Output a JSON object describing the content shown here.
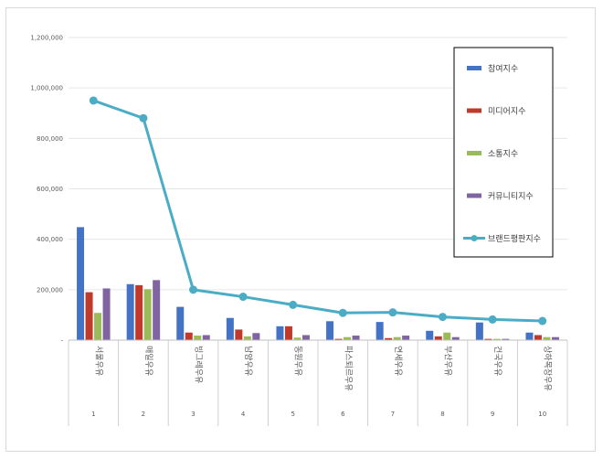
{
  "chart_data": {
    "type": "bar",
    "title": "",
    "xlabel": "",
    "ylabel": "",
    "ylim": [
      0,
      1200000
    ],
    "yticks": [
      "-",
      "200,000",
      "400,000",
      "600,000",
      "800,000",
      "1,000,000",
      "1,200,000"
    ],
    "grid": true,
    "legend_position": "top-right",
    "categories": [
      "서울우유",
      "매일우유",
      "빙그레우유",
      "남양우유",
      "동원우유",
      "파스퇴르우유",
      "연세우유",
      "부산우유",
      "건국우유",
      "상하목장우유"
    ],
    "category_index": [
      "1",
      "2",
      "3",
      "4",
      "5",
      "6",
      "7",
      "8",
      "9",
      "10"
    ],
    "series": [
      {
        "name": "참여지수",
        "type": "bar",
        "color": "#4472c4",
        "values": [
          448000,
          222000,
          132000,
          88000,
          55000,
          75000,
          72000,
          37000,
          70000,
          30000
        ]
      },
      {
        "name": "미디어지수",
        "type": "bar",
        "color": "#c0392b",
        "values": [
          190000,
          218000,
          30000,
          42000,
          55000,
          5000,
          8000,
          15000,
          5000,
          20000
        ]
      },
      {
        "name": "소통지수",
        "type": "bar",
        "color": "#9bbb59",
        "values": [
          108000,
          202000,
          18000,
          15000,
          10000,
          12000,
          12000,
          30000,
          5000,
          12000
        ]
      },
      {
        "name": "커뮤니티지수",
        "type": "bar",
        "color": "#8064a2",
        "values": [
          205000,
          238000,
          20000,
          28000,
          20000,
          18000,
          18000,
          12000,
          5000,
          12000
        ]
      },
      {
        "name": "브랜드평판지수",
        "type": "line",
        "color": "#4bacc6",
        "values": [
          950000,
          880000,
          200000,
          172000,
          140000,
          108000,
          110000,
          92000,
          82000,
          76000
        ]
      }
    ]
  }
}
